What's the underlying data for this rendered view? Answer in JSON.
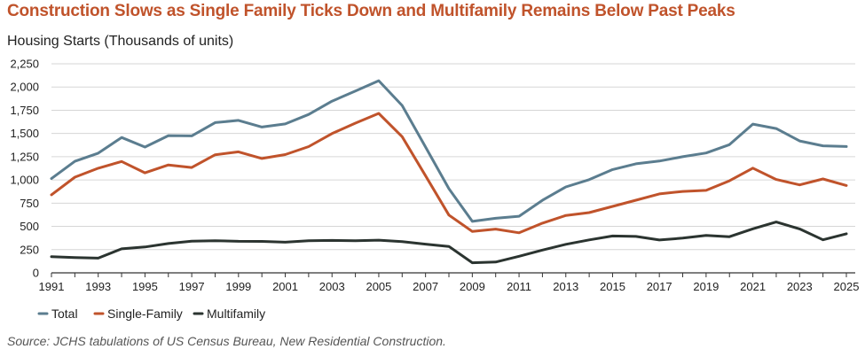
{
  "title": "Construction Slows as Single Family Ticks Down and Multifamily Remains Below Past Peaks",
  "source": "Source: JCHS tabulations of US Census Bureau, New Residential Construction.",
  "chart_data": {
    "type": "line",
    "title": "Construction Slows as Single Family Ticks Down and Multifamily Remains Below Past Peaks",
    "ylabel": "Housing Starts (Thousands of units)",
    "xlabel": "",
    "ylim": [
      0,
      2250
    ],
    "yticks": [
      0,
      250,
      500,
      750,
      1000,
      1250,
      1500,
      1750,
      2000,
      2250
    ],
    "ytick_labels": [
      "0",
      "250",
      "500",
      "750",
      "1,000",
      "1,250",
      "1,500",
      "1,750",
      "2,000",
      "2,250"
    ],
    "xticks": [
      1991,
      1993,
      1995,
      1997,
      1999,
      2001,
      2003,
      2005,
      2007,
      2009,
      2011,
      2013,
      2015,
      2017,
      2019,
      2021,
      2023,
      2025
    ],
    "x": [
      1991,
      1992,
      1993,
      1994,
      1995,
      1996,
      1997,
      1998,
      1999,
      2000,
      2001,
      2002,
      2003,
      2004,
      2005,
      2006,
      2007,
      2008,
      2009,
      2010,
      2011,
      2012,
      2013,
      2014,
      2015,
      2016,
      2017,
      2018,
      2019,
      2020,
      2021,
      2022,
      2023,
      2024,
      2025
    ],
    "grid": "horizontal",
    "legend_position": "bottom-left",
    "series": [
      {
        "name": "Total",
        "color": "#5b7d8f",
        "values": [
          1014,
          1200,
          1288,
          1457,
          1354,
          1477,
          1474,
          1617,
          1641,
          1569,
          1603,
          1705,
          1848,
          1956,
          2068,
          1801,
          1355,
          906,
          554,
          587,
          609,
          781,
          925,
          1003,
          1112,
          1174,
          1203,
          1250,
          1290,
          1380,
          1601,
          1553,
          1420,
          1367,
          1360
        ]
      },
      {
        "name": "Single-Family",
        "color": "#c0532b",
        "values": [
          840,
          1030,
          1126,
          1198,
          1076,
          1161,
          1134,
          1271,
          1302,
          1231,
          1273,
          1359,
          1499,
          1611,
          1716,
          1465,
          1046,
          622,
          445,
          471,
          431,
          535,
          618,
          648,
          715,
          782,
          849,
          876,
          888,
          991,
          1127,
          1005,
          947,
          1011,
          940
        ]
      },
      {
        "name": "Multifamily",
        "color": "#2b3430",
        "values": [
          174,
          165,
          158,
          258,
          278,
          316,
          340,
          346,
          339,
          338,
          330,
          346,
          349,
          345,
          352,
          336,
          309,
          284,
          109,
          116,
          178,
          245,
          307,
          355,
          397,
          392,
          354,
          374,
          402,
          389,
          474,
          547,
          473,
          356,
          420
        ]
      }
    ]
  }
}
